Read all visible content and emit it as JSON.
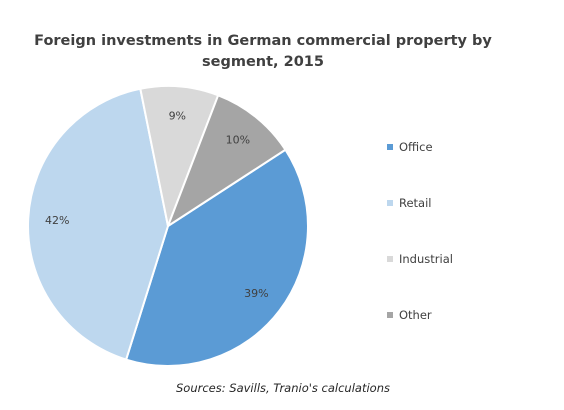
{
  "chart_data": {
    "type": "pie",
    "title": "Foreign investments in German commercial  property by segment, 2015",
    "title_lines": [
      "Foreign investments in German commercial  property by",
      "segment, 2015"
    ],
    "categories": [
      "Office",
      "Retail",
      "Industrial",
      "Other"
    ],
    "values": [
      39,
      42,
      9,
      10
    ],
    "labels": [
      "39%",
      "42%",
      "9%",
      "10%"
    ],
    "unit": "%",
    "colors": [
      "#5b9bd5",
      "#bdd7ee",
      "#d9d9d9",
      "#a5a5a5"
    ],
    "start_angle_deg": 57,
    "legend_position": "right",
    "source": "Sources:  Savills, Tranio's  calculations"
  }
}
